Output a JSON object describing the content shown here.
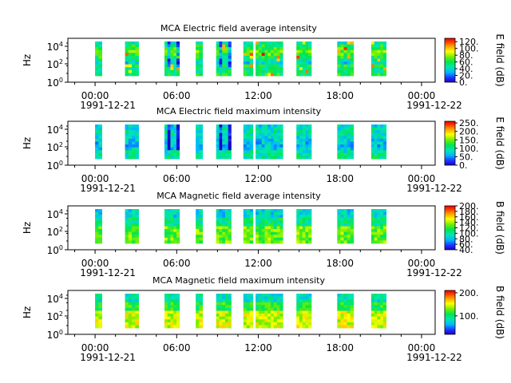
{
  "chart_data": [
    {
      "type": "heatmap",
      "title": "MCA  Electric field average intensity",
      "ylabel": "Hz",
      "yscale": "log",
      "y_ticks": [
        "10^4",
        "10^2",
        "10^0"
      ],
      "x_ticks": [
        "00:00",
        "06:00",
        "12:00",
        "18:00",
        "00:00"
      ],
      "x_dates": [
        "1991-12-21",
        "1991-12-22"
      ],
      "colorbar_label": "E field (dB)",
      "colorbar_ticks": [
        "120.",
        "100.",
        "80.",
        "60.",
        "40.",
        "20.",
        "0."
      ],
      "color_range": [
        0,
        130
      ],
      "data_segments_hours": [
        [
          0.0,
          0.5
        ],
        [
          2.2,
          3.2
        ],
        [
          5.1,
          6.2
        ],
        [
          7.4,
          7.9
        ],
        [
          8.9,
          10.0
        ],
        [
          10.9,
          11.6
        ],
        [
          11.8,
          13.8
        ],
        [
          14.8,
          15.9
        ],
        [
          17.8,
          19.0
        ],
        [
          20.3,
          21.4
        ]
      ]
    },
    {
      "type": "heatmap",
      "title": "MCA  Electric field maximum intensity",
      "ylabel": "Hz",
      "yscale": "log",
      "y_ticks": [
        "10^4",
        "10^2",
        "10^0"
      ],
      "x_ticks": [
        "00:00",
        "06:00",
        "12:00",
        "18:00",
        "00:00"
      ],
      "x_dates": [
        "1991-12-21",
        "1991-12-22"
      ],
      "colorbar_label": "E field (dB)",
      "colorbar_ticks": [
        "250.",
        "200.",
        "150.",
        "100.",
        "50.",
        "0."
      ],
      "color_range": [
        0,
        260
      ],
      "data_segments_hours": [
        [
          0.0,
          0.5
        ],
        [
          2.2,
          3.2
        ],
        [
          5.1,
          6.2
        ],
        [
          7.4,
          7.9
        ],
        [
          8.9,
          10.0
        ],
        [
          10.9,
          11.6
        ],
        [
          11.8,
          13.8
        ],
        [
          14.8,
          15.9
        ],
        [
          17.8,
          19.0
        ],
        [
          20.3,
          21.4
        ]
      ]
    },
    {
      "type": "heatmap",
      "title": "MCA  Magnetic field average intensity",
      "ylabel": "Hz",
      "yscale": "log",
      "y_ticks": [
        "10^4",
        "10^2",
        "10^0"
      ],
      "x_ticks": [
        "00:00",
        "06:00",
        "12:00",
        "18:00",
        "00:00"
      ],
      "x_dates": [
        "1991-12-21",
        "1991-12-22"
      ],
      "colorbar_label": "B field (dB)",
      "colorbar_ticks": [
        "200.",
        "180.",
        "160.",
        "140.",
        "120.",
        "100.",
        "80.",
        "60.",
        "40."
      ],
      "color_range": [
        40,
        200
      ],
      "data_segments_hours": [
        [
          0.0,
          0.5
        ],
        [
          2.2,
          3.2
        ],
        [
          5.1,
          6.2
        ],
        [
          7.4,
          7.9
        ],
        [
          8.9,
          10.0
        ],
        [
          10.9,
          11.6
        ],
        [
          11.8,
          13.8
        ],
        [
          14.8,
          15.9
        ],
        [
          17.8,
          19.0
        ],
        [
          20.3,
          21.4
        ]
      ]
    },
    {
      "type": "heatmap",
      "title": "MCA  Magnetic field maximum intensity",
      "ylabel": "Hz",
      "yscale": "log",
      "y_ticks": [
        "10^4",
        "10^2",
        "10^0"
      ],
      "x_ticks": [
        "00:00",
        "06:00",
        "12:00",
        "18:00",
        "00:00"
      ],
      "x_dates": [
        "1991-12-21",
        "1991-12-22"
      ],
      "colorbar_label": "B field (dB)",
      "colorbar_ticks": [
        "200.",
        "100."
      ],
      "color_range": [
        20,
        210
      ],
      "data_segments_hours": [
        [
          0.0,
          0.5
        ],
        [
          2.2,
          3.2
        ],
        [
          5.1,
          6.2
        ],
        [
          7.4,
          7.9
        ],
        [
          8.9,
          10.0
        ],
        [
          10.9,
          11.6
        ],
        [
          11.8,
          13.8
        ],
        [
          14.8,
          15.9
        ],
        [
          17.8,
          19.0
        ],
        [
          20.3,
          21.4
        ]
      ]
    }
  ]
}
